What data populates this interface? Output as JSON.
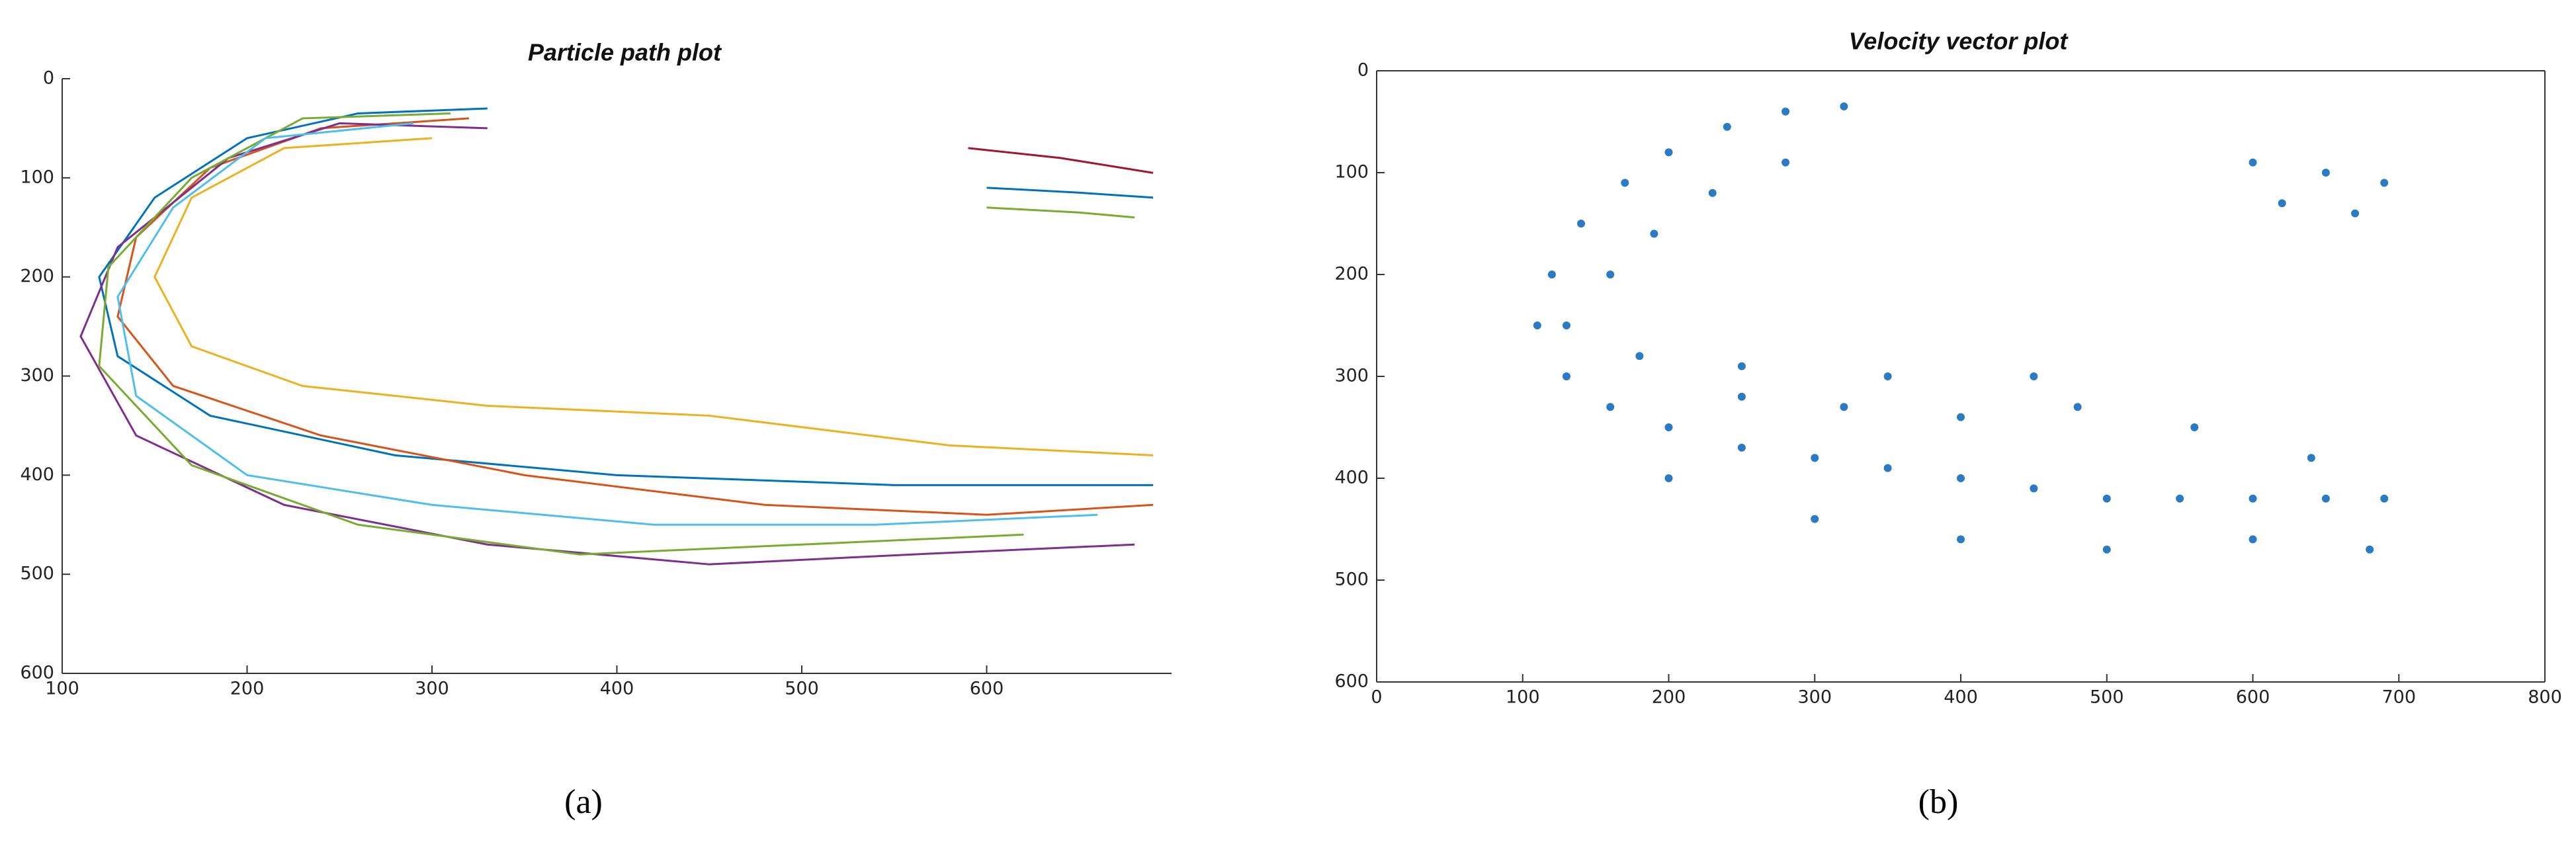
{
  "chart_data": [
    {
      "type": "line",
      "title": "Particle path plot",
      "caption": "(a)",
      "xlim": [
        100,
        700
      ],
      "ylim": [
        600,
        0
      ],
      "xticks": [
        100,
        200,
        300,
        400,
        500,
        600
      ],
      "yticks": [
        0,
        100,
        200,
        300,
        400,
        500,
        600
      ],
      "series": [
        {
          "color": "#0072BD",
          "x": [
            330,
            260,
            200,
            150,
            120,
            130,
            180,
            280,
            400,
            550,
            690
          ],
          "y": [
            30,
            35,
            60,
            120,
            200,
            280,
            340,
            380,
            400,
            410,
            410
          ]
        },
        {
          "color": "#D95319",
          "x": [
            320,
            240,
            180,
            140,
            130,
            160,
            240,
            350,
            480,
            600,
            690
          ],
          "y": [
            40,
            50,
            90,
            160,
            240,
            310,
            360,
            400,
            430,
            440,
            430
          ]
        },
        {
          "color": "#EDB120",
          "x": [
            300,
            220,
            170,
            150,
            170,
            230,
            330,
            450,
            580,
            690
          ],
          "y": [
            60,
            70,
            120,
            200,
            270,
            310,
            330,
            340,
            370,
            380
          ]
        },
        {
          "color": "#7E2F8E",
          "x": [
            330,
            250,
            190,
            130,
            110,
            140,
            220,
            330,
            450,
            560,
            680
          ],
          "y": [
            50,
            45,
            80,
            170,
            260,
            360,
            430,
            470,
            490,
            480,
            470
          ]
        },
        {
          "color": "#77AC30",
          "x": [
            310,
            230,
            170,
            125,
            120,
            170,
            260,
            380,
            500,
            620
          ],
          "y": [
            35,
            40,
            100,
            190,
            290,
            390,
            450,
            480,
            470,
            460
          ]
        },
        {
          "color": "#4DBEEE",
          "x": [
            290,
            210,
            160,
            130,
            140,
            200,
            300,
            420,
            540,
            660
          ],
          "y": [
            45,
            60,
            130,
            220,
            320,
            400,
            430,
            450,
            450,
            440
          ]
        },
        {
          "color": "#A2142F",
          "x": [
            590,
            640,
            690
          ],
          "y": [
            70,
            80,
            95
          ]
        },
        {
          "color": "#0072BD",
          "x": [
            600,
            650,
            690
          ],
          "y": [
            110,
            115,
            120
          ]
        },
        {
          "color": "#77AC30",
          "x": [
            600,
            650,
            680
          ],
          "y": [
            130,
            135,
            140
          ]
        }
      ]
    },
    {
      "type": "scatter",
      "title": "Velocity vector plot",
      "caption": "(b)",
      "xlim": [
        0,
        800
      ],
      "ylim": [
        600,
        0
      ],
      "xticks": [
        0,
        100,
        200,
        300,
        400,
        500,
        600,
        700,
        800
      ],
      "yticks": [
        0,
        100,
        200,
        300,
        400,
        500,
        600
      ],
      "color": "#2b7bc4",
      "x": [
        320,
        280,
        240,
        200,
        170,
        140,
        120,
        110,
        130,
        160,
        200,
        250,
        300,
        350,
        400,
        450,
        500,
        550,
        600,
        650,
        690,
        130,
        180,
        250,
        320,
        400,
        480,
        560,
        640,
        200,
        300,
        400,
        500,
        600,
        680,
        600,
        650,
        690,
        620,
        670,
        250,
        350,
        450,
        160,
        190,
        230,
        280
      ],
      "y": [
        35,
        40,
        55,
        80,
        110,
        150,
        200,
        250,
        300,
        330,
        350,
        370,
        380,
        390,
        400,
        410,
        420,
        420,
        420,
        420,
        420,
        250,
        280,
        320,
        330,
        340,
        330,
        350,
        380,
        400,
        440,
        460,
        470,
        460,
        470,
        90,
        100,
        110,
        130,
        140,
        290,
        300,
        300,
        200,
        160,
        120,
        90
      ]
    }
  ]
}
